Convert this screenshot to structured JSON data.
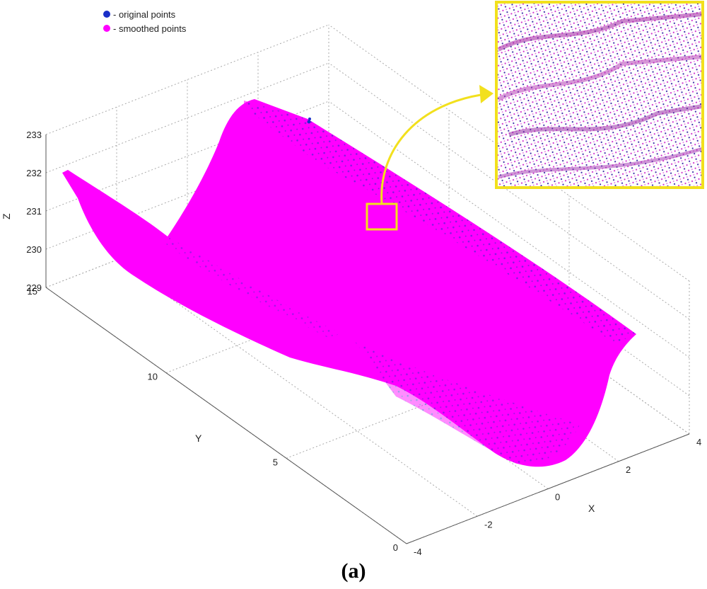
{
  "caption": "(a)",
  "chart_data": {
    "type": "scatter",
    "subtype": "3d-point-cloud",
    "xlabel": "X",
    "ylabel": "Y",
    "zlabel": "Z",
    "xlim": [
      -4,
      4
    ],
    "ylim": [
      0,
      15
    ],
    "zlim": [
      229,
      233
    ],
    "x_ticks": [
      "-4",
      "-2",
      "0",
      "2",
      "4"
    ],
    "y_ticks": [
      "0",
      "5",
      "10",
      "15"
    ],
    "z_ticks": [
      "229",
      "230",
      "231",
      "232",
      "233"
    ],
    "grid": true,
    "legend_position": "top-left",
    "series": [
      {
        "name": "- original points",
        "color": "#1a2fc8",
        "marker": "dot"
      },
      {
        "name": "- smoothed points",
        "color": "#ff00ff",
        "marker": "dot"
      }
    ],
    "annotation": {
      "type": "zoom-inset",
      "color": "#f2e01d",
      "position": "top-right"
    }
  }
}
